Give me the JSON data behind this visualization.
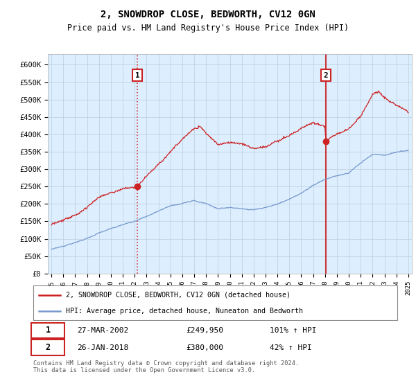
{
  "title": "2, SNOWDROP CLOSE, BEDWORTH, CV12 0GN",
  "subtitle": "Price paid vs. HM Land Registry's House Price Index (HPI)",
  "title_fontsize": 10,
  "subtitle_fontsize": 8.5,
  "ylabel_ticks": [
    "£0",
    "£50K",
    "£100K",
    "£150K",
    "£200K",
    "£250K",
    "£300K",
    "£350K",
    "£400K",
    "£450K",
    "£500K",
    "£550K",
    "£600K"
  ],
  "ytick_values": [
    0,
    50000,
    100000,
    150000,
    200000,
    250000,
    300000,
    350000,
    400000,
    450000,
    500000,
    550000,
    600000
  ],
  "ylim": [
    0,
    630000
  ],
  "hpi_color": "#7799cc",
  "price_color": "#cc2222",
  "bg_color": "#ddeeff",
  "plot_bg": "#ddeeff",
  "marker1_year": 2002.23,
  "marker1_price": 249950,
  "marker1_date": "27-MAR-2002",
  "marker1_amount": "£249,950",
  "marker1_pct": "101% ↑ HPI",
  "marker2_year": 2018.07,
  "marker2_price": 380000,
  "marker2_date": "26-JAN-2018",
  "marker2_amount": "£380,000",
  "marker2_pct": "42% ↑ HPI",
  "legend_line1": "2, SNOWDROP CLOSE, BEDWORTH, CV12 0GN (detached house)",
  "legend_line2": "HPI: Average price, detached house, Nuneaton and Bedworth",
  "footnote": "Contains HM Land Registry data © Crown copyright and database right 2024.\nThis data is licensed under the Open Government Licence v3.0.",
  "background_color": "#ffffff",
  "grid_color": "#bbccdd"
}
